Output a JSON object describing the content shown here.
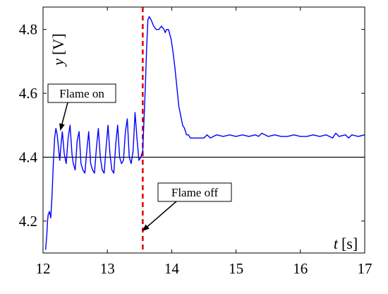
{
  "chart_data": {
    "type": "line",
    "xlim": [
      12,
      17
    ],
    "ylim": [
      4.1,
      4.87
    ],
    "x_ticks": [
      "12",
      "13",
      "14",
      "15",
      "16",
      "17"
    ],
    "y_ticks": [
      "4.2",
      "4.4",
      "4.6",
      "4.8"
    ],
    "xlabel": "t [s]",
    "xlabel_var": "t",
    "xlabel_unit": "[s]",
    "ylabel": "y [V]",
    "ylabel_var": "y",
    "ylabel_unit": "[V]",
    "grid": false,
    "series": [
      {
        "color": "#0000ff",
        "x": [
          12.04,
          12.06,
          12.07,
          12.08,
          12.1,
          12.12,
          12.14,
          12.16,
          12.18,
          12.2,
          12.22,
          12.24,
          12.26,
          12.28,
          12.3,
          12.33,
          12.36,
          12.39,
          12.42,
          12.45,
          12.47,
          12.5,
          12.53,
          12.56,
          12.59,
          12.62,
          12.65,
          12.68,
          12.71,
          12.74,
          12.77,
          12.8,
          12.83,
          12.86,
          12.89,
          12.92,
          12.95,
          12.98,
          13.01,
          13.04,
          13.07,
          13.1,
          13.13,
          13.16,
          13.19,
          13.22,
          13.25,
          13.28,
          13.31,
          13.34,
          13.37,
          13.4,
          13.43,
          13.46,
          13.49,
          13.52,
          13.55,
          13.57,
          13.59,
          13.61,
          13.63,
          13.65,
          13.68,
          13.72,
          13.76,
          13.8,
          13.84,
          13.88,
          13.9,
          13.92,
          13.95,
          13.99,
          14.02,
          14.05,
          14.08,
          14.11,
          14.14,
          14.17,
          14.2,
          14.23,
          14.26,
          14.29,
          14.32,
          14.35,
          14.38,
          14.41,
          14.44,
          14.47,
          14.5,
          14.55,
          14.6,
          14.7,
          14.8,
          14.9,
          15.0,
          15.1,
          15.2,
          15.3,
          15.35,
          15.4,
          15.5,
          15.6,
          15.7,
          15.8,
          15.9,
          16.0,
          16.1,
          16.2,
          16.3,
          16.4,
          16.5,
          16.55,
          16.6,
          16.7,
          16.75,
          16.8,
          16.9,
          17.0
        ],
        "values": [
          4.11,
          4.16,
          4.2,
          4.22,
          4.23,
          4.21,
          4.28,
          4.38,
          4.46,
          4.49,
          4.47,
          4.43,
          4.39,
          4.44,
          4.48,
          4.41,
          4.38,
          4.46,
          4.5,
          4.41,
          4.38,
          4.36,
          4.45,
          4.48,
          4.38,
          4.36,
          4.35,
          4.42,
          4.48,
          4.38,
          4.36,
          4.35,
          4.43,
          4.49,
          4.4,
          4.36,
          4.35,
          4.43,
          4.5,
          4.41,
          4.36,
          4.35,
          4.44,
          4.5,
          4.4,
          4.38,
          4.39,
          4.48,
          4.52,
          4.4,
          4.38,
          4.42,
          4.54,
          4.46,
          4.39,
          4.4,
          4.42,
          4.52,
          4.62,
          4.74,
          4.83,
          4.84,
          4.83,
          4.81,
          4.8,
          4.8,
          4.81,
          4.8,
          4.79,
          4.8,
          4.8,
          4.77,
          4.73,
          4.68,
          4.62,
          4.56,
          4.53,
          4.5,
          4.49,
          4.47,
          4.47,
          4.46,
          4.46,
          4.46,
          4.46,
          4.46,
          4.46,
          4.46,
          4.46,
          4.47,
          4.46,
          4.47,
          4.465,
          4.47,
          4.465,
          4.47,
          4.465,
          4.47,
          4.465,
          4.475,
          4.465,
          4.47,
          4.465,
          4.465,
          4.47,
          4.465,
          4.465,
          4.47,
          4.465,
          4.47,
          4.46,
          4.475,
          4.465,
          4.47,
          4.46,
          4.47,
          4.465,
          4.47
        ]
      }
    ],
    "reference_lines": [
      {
        "orientation": "horizontal",
        "value": 4.4,
        "color": "#000000",
        "style": "solid"
      },
      {
        "orientation": "vertical",
        "value": 13.55,
        "color": "#e00000",
        "style": "dashed"
      }
    ],
    "annotations": [
      {
        "text": "Flame on",
        "target_x": 12.27,
        "target_y": 4.485
      },
      {
        "text": "Flame off",
        "target_x": 13.55,
        "target_y": 4.17
      }
    ]
  }
}
